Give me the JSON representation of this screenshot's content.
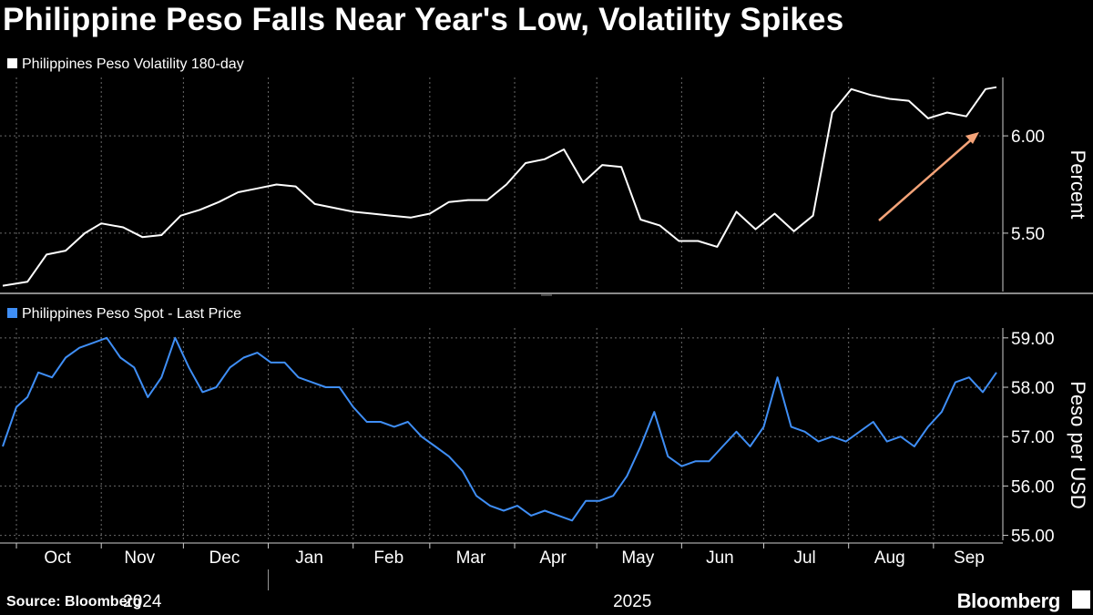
{
  "title": "Philippine Peso Falls Near Year's Low, Volatility Spikes",
  "source": "Source: Bloomberg",
  "brand": "Bloomberg",
  "colors": {
    "background": "#000000",
    "volatility_line": "#ffffff",
    "spot_line": "#3f8ef5",
    "arrow": "#f4a378",
    "grid": "#6a6a6a"
  },
  "icons": [
    "bloomberg-terminal-icon"
  ],
  "x_axis": {
    "months": [
      "Oct",
      "Nov",
      "Dec",
      "Jan",
      "Feb",
      "Mar",
      "Apr",
      "May",
      "Jun",
      "Jul",
      "Aug",
      "Sep"
    ],
    "years": [
      "2024",
      "2025"
    ]
  },
  "chart_data": [
    {
      "type": "line",
      "name": "Philippines Peso Volatility 180-day",
      "legend": "Philippines Peso Volatility 180-day",
      "ylabel": "Percent",
      "ylim": [
        5.2,
        6.3
      ],
      "yticks": [
        5.5,
        6.0
      ],
      "ytick_labels": [
        "5.50",
        "6.00"
      ],
      "annotation": "arrow pointing up to the latest value",
      "x": [
        "2024-09-26",
        "2024-10-05",
        "2024-10-12",
        "2024-10-19",
        "2024-10-26",
        "2024-11-01",
        "2024-11-09",
        "2024-11-16",
        "2024-11-23",
        "2024-11-30",
        "2024-12-07",
        "2024-12-14",
        "2024-12-21",
        "2024-12-28",
        "2025-01-04",
        "2025-01-11",
        "2025-01-18",
        "2025-01-25",
        "2025-02-01",
        "2025-02-08",
        "2025-02-15",
        "2025-02-22",
        "2025-03-01",
        "2025-03-08",
        "2025-03-15",
        "2025-03-22",
        "2025-03-29",
        "2025-04-05",
        "2025-04-12",
        "2025-04-19",
        "2025-04-26",
        "2025-05-03",
        "2025-05-10",
        "2025-05-17",
        "2025-05-24",
        "2025-05-31",
        "2025-06-07",
        "2025-06-14",
        "2025-06-21",
        "2025-06-28",
        "2025-07-05",
        "2025-07-12",
        "2025-07-19",
        "2025-07-26",
        "2025-08-02",
        "2025-08-09",
        "2025-08-16",
        "2025-08-23",
        "2025-08-30",
        "2025-09-06",
        "2025-09-13",
        "2025-09-20",
        "2025-09-24"
      ],
      "values": [
        5.23,
        5.25,
        5.39,
        5.41,
        5.5,
        5.55,
        5.53,
        5.48,
        5.49,
        5.59,
        5.62,
        5.66,
        5.71,
        5.73,
        5.75,
        5.74,
        5.65,
        5.63,
        5.61,
        5.6,
        5.59,
        5.58,
        5.6,
        5.66,
        5.67,
        5.67,
        5.75,
        5.86,
        5.88,
        5.93,
        5.76,
        5.85,
        5.84,
        5.57,
        5.54,
        5.46,
        5.46,
        5.43,
        5.61,
        5.52,
        5.6,
        5.51,
        5.59,
        6.12,
        6.24,
        6.21,
        6.19,
        6.18,
        6.09,
        6.12,
        6.1,
        6.24,
        6.25
      ]
    },
    {
      "type": "line",
      "name": "Philippines Peso Spot - Last Price",
      "legend": "Philippines Peso Spot - Last Price",
      "ylabel": "Peso per USD",
      "ylim": [
        54.9,
        59.2
      ],
      "yticks": [
        55,
        56,
        57,
        58,
        59
      ],
      "ytick_labels": [
        "55.00",
        "56.00",
        "57.00",
        "58.00",
        "59.00"
      ],
      "x": [
        "2024-09-26",
        "2024-10-01",
        "2024-10-05",
        "2024-10-09",
        "2024-10-14",
        "2024-10-19",
        "2024-10-24",
        "2024-10-29",
        "2024-11-03",
        "2024-11-08",
        "2024-11-13",
        "2024-11-18",
        "2024-11-23",
        "2024-11-28",
        "2024-12-03",
        "2024-12-08",
        "2024-12-13",
        "2024-12-18",
        "2024-12-23",
        "2024-12-28",
        "2025-01-02",
        "2025-01-07",
        "2025-01-12",
        "2025-01-17",
        "2025-01-22",
        "2025-01-27",
        "2025-02-01",
        "2025-02-06",
        "2025-02-11",
        "2025-02-16",
        "2025-02-21",
        "2025-02-26",
        "2025-03-03",
        "2025-03-08",
        "2025-03-13",
        "2025-03-18",
        "2025-03-23",
        "2025-03-28",
        "2025-04-02",
        "2025-04-07",
        "2025-04-12",
        "2025-04-17",
        "2025-04-22",
        "2025-04-27",
        "2025-05-02",
        "2025-05-07",
        "2025-05-12",
        "2025-05-17",
        "2025-05-22",
        "2025-05-27",
        "2025-06-01",
        "2025-06-06",
        "2025-06-11",
        "2025-06-16",
        "2025-06-21",
        "2025-06-26",
        "2025-07-01",
        "2025-07-06",
        "2025-07-11",
        "2025-07-16",
        "2025-07-21",
        "2025-07-26",
        "2025-07-31",
        "2025-08-05",
        "2025-08-10",
        "2025-08-15",
        "2025-08-20",
        "2025-08-25",
        "2025-08-30",
        "2025-09-04",
        "2025-09-09",
        "2025-09-14",
        "2025-09-19",
        "2025-09-24"
      ],
      "values": [
        56.8,
        57.6,
        57.8,
        58.3,
        58.2,
        58.6,
        58.8,
        58.9,
        59.0,
        58.6,
        58.4,
        57.8,
        58.2,
        59.0,
        58.4,
        57.9,
        58.0,
        58.4,
        58.6,
        58.7,
        58.5,
        58.5,
        58.2,
        58.1,
        58.0,
        58.0,
        57.6,
        57.3,
        57.3,
        57.2,
        57.3,
        57.0,
        56.8,
        56.6,
        56.3,
        55.8,
        55.6,
        55.5,
        55.6,
        55.4,
        55.5,
        55.4,
        55.3,
        55.7,
        55.7,
        55.8,
        56.2,
        56.8,
        57.5,
        56.6,
        56.4,
        56.5,
        56.5,
        56.8,
        57.1,
        56.8,
        57.2,
        58.2,
        57.2,
        57.1,
        56.9,
        57.0,
        56.9,
        57.1,
        57.3,
        56.9,
        57.0,
        56.8,
        57.2,
        57.5,
        58.1,
        58.2,
        57.9,
        58.3
      ]
    }
  ]
}
